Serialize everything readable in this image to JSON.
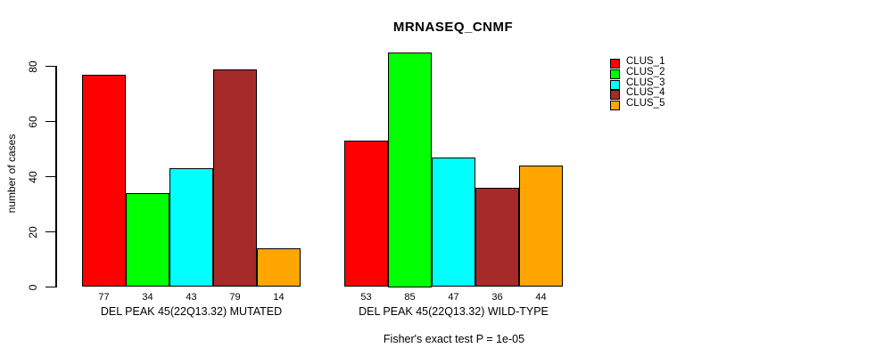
{
  "chart_data": {
    "type": "bar",
    "title": "MRNASEQ_CNMF",
    "ylabel": "number of cases",
    "ylim": [
      0,
      80
    ],
    "yticks": [
      0,
      20,
      40,
      60,
      80
    ],
    "grid": false,
    "legend_position": "right",
    "bar_value_labels_shown": true,
    "categories": [
      "DEL PEAK 45(22Q13.32) MUTATED",
      "DEL PEAK 45(22Q13.32) WILD-TYPE"
    ],
    "series": [
      {
        "name": "CLUS_1",
        "color": "#FF0000",
        "values": [
          77,
          53
        ]
      },
      {
        "name": "CLUS_2",
        "color": "#00FF00",
        "values": [
          34,
          85
        ]
      },
      {
        "name": "CLUS_3",
        "color": "#00FFFF",
        "values": [
          43,
          47
        ]
      },
      {
        "name": "CLUS_4",
        "color": "#A52A2A",
        "values": [
          79,
          36
        ]
      },
      {
        "name": "CLUS_5",
        "color": "#FFA500",
        "values": [
          14,
          44
        ]
      }
    ],
    "annotation": "Fisher's exact test P = 1e-05"
  }
}
